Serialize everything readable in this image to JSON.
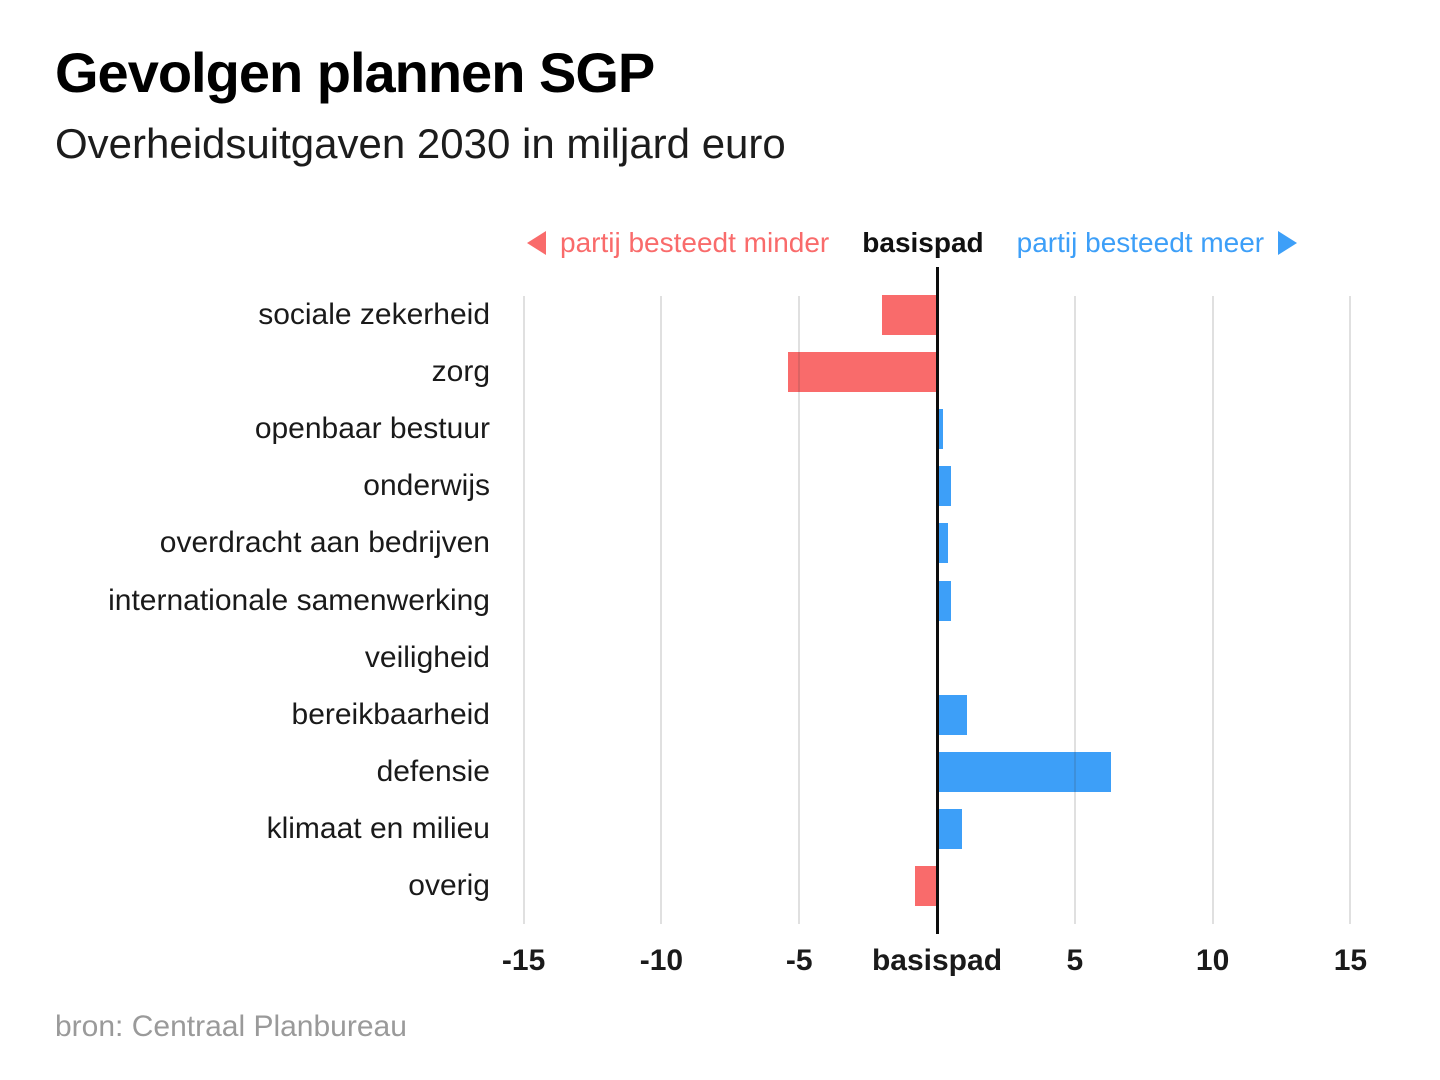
{
  "title": "Gevolgen plannen SGP",
  "subtitle": "Overheidsuitgaven 2030 in miljard euro",
  "legend": {
    "less_label": "partij besteedt minder",
    "base_label": "basispad",
    "more_label": "partij besteedt meer"
  },
  "source": "bron: Centraal Planbureau",
  "colors": {
    "negative_bar": "#f96b6b",
    "positive_bar": "#3d9ff8",
    "baseline": "#0c0c0c",
    "text": "#1a1a1a",
    "source_text": "#9a9a9a"
  },
  "chart_data": {
    "type": "bar",
    "orientation": "horizontal-diverging",
    "title": "Gevolgen plannen SGP",
    "subtitle": "Overheidsuitgaven 2030 in miljard euro",
    "unit": "miljard euro",
    "baseline_label": "basispad",
    "xlim": [
      -15,
      15
    ],
    "x_ticks": [
      -15,
      -10,
      -5,
      0,
      5,
      10,
      15
    ],
    "x_tick_labels": [
      "-15",
      "-10",
      "-5",
      "basispad",
      "5",
      "10",
      "15"
    ],
    "grid": true,
    "legend_position": "top",
    "categories": [
      "sociale zekerheid",
      "zorg",
      "openbaar bestuur",
      "onderwijs",
      "overdracht aan bedrijven",
      "internationale samenwerking",
      "veiligheid",
      "bereikbaarheid",
      "defensie",
      "klimaat en milieu",
      "overig"
    ],
    "values": [
      -2.0,
      -5.4,
      0.2,
      0.5,
      0.4,
      0.5,
      0.0,
      1.1,
      6.3,
      0.9,
      -0.8
    ]
  }
}
